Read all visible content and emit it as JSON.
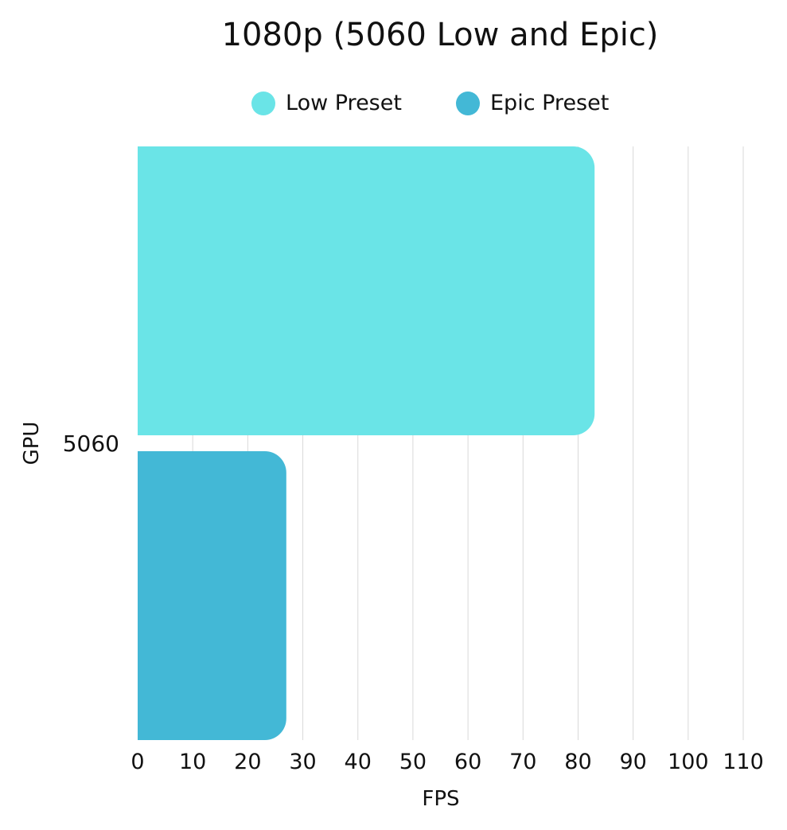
{
  "chart_data": {
    "type": "bar",
    "orientation": "horizontal",
    "title": "1080p (5060 Low and Epic)",
    "xlabel": "FPS",
    "ylabel": "GPU",
    "categories": [
      "5060"
    ],
    "series": [
      {
        "name": "Low Preset",
        "values": [
          83
        ],
        "color": "#6ae4e7"
      },
      {
        "name": "Epic Preset",
        "values": [
          27
        ],
        "color": "#43b8d6"
      }
    ],
    "xlim": [
      0,
      110
    ],
    "xticks": [
      0,
      10,
      20,
      30,
      40,
      50,
      60,
      70,
      80,
      90,
      100,
      110
    ],
    "grid": true,
    "legend_position": "top-center"
  }
}
